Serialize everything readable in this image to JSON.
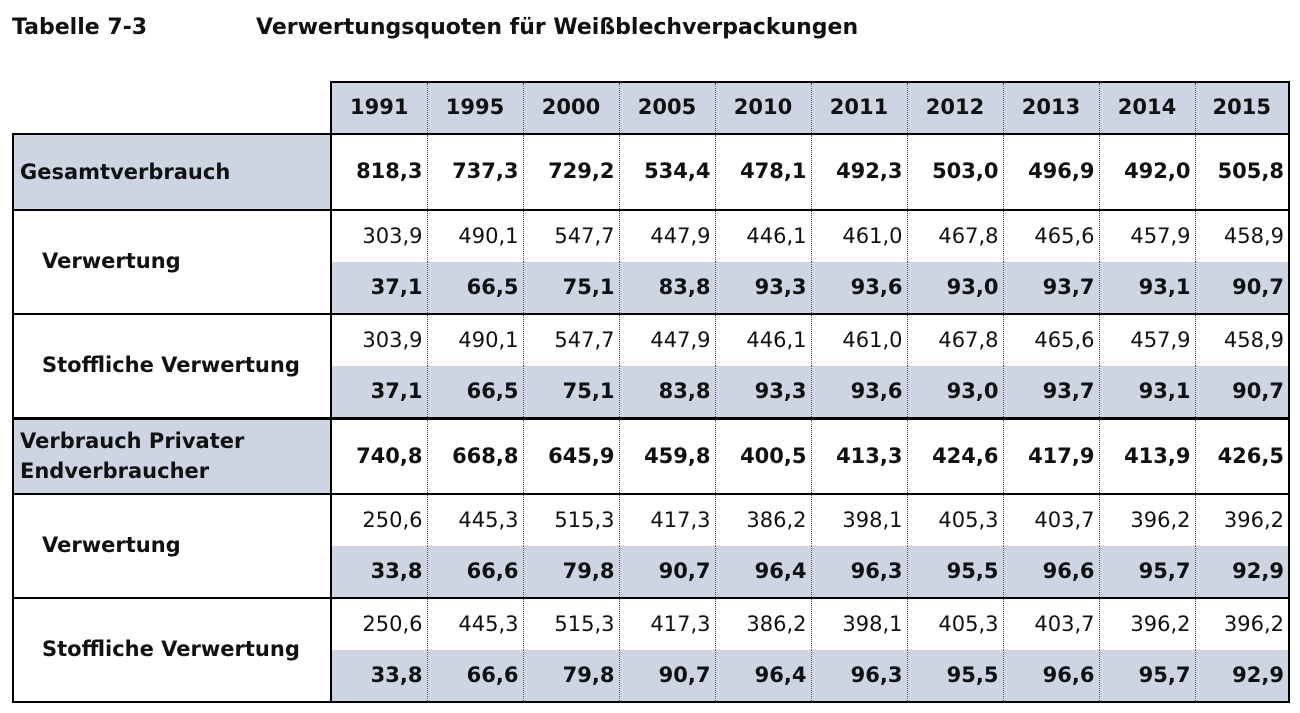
{
  "title": {
    "code": "Tabelle 7-3",
    "text": "Verwertungsquoten für Weißblechverpackungen"
  },
  "years": [
    "1991",
    "1995",
    "2000",
    "2005",
    "2010",
    "2011",
    "2012",
    "2013",
    "2014",
    "2015"
  ],
  "sections": [
    {
      "label": "Gesamtverbrauch",
      "totals": [
        "818,3",
        "737,3",
        "729,2",
        "534,4",
        "478,1",
        "492,3",
        "503,0",
        "496,9",
        "492,0",
        "505,8"
      ],
      "subs": [
        {
          "label": "Verwertung",
          "amounts": [
            "303,9",
            "490,1",
            "547,7",
            "447,9",
            "446,1",
            "461,0",
            "467,8",
            "465,6",
            "457,9",
            "458,9"
          ],
          "rates": [
            "37,1",
            "66,5",
            "75,1",
            "83,8",
            "93,3",
            "93,6",
            "93,0",
            "93,7",
            "93,1",
            "90,7"
          ]
        },
        {
          "label": "Stoffliche Verwertung",
          "amounts": [
            "303,9",
            "490,1",
            "547,7",
            "447,9",
            "446,1",
            "461,0",
            "467,8",
            "465,6",
            "457,9",
            "458,9"
          ],
          "rates": [
            "37,1",
            "66,5",
            "75,1",
            "83,8",
            "93,3",
            "93,6",
            "93,0",
            "93,7",
            "93,1",
            "90,7"
          ]
        }
      ]
    },
    {
      "label": "Verbrauch Privater Endverbraucher",
      "totals": [
        "740,8",
        "668,8",
        "645,9",
        "459,8",
        "400,5",
        "413,3",
        "424,6",
        "417,9",
        "413,9",
        "426,5"
      ],
      "subs": [
        {
          "label": "Verwertung",
          "amounts": [
            "250,6",
            "445,3",
            "515,3",
            "417,3",
            "386,2",
            "398,1",
            "405,3",
            "403,7",
            "396,2",
            "396,2"
          ],
          "rates": [
            "33,8",
            "66,6",
            "79,8",
            "90,7",
            "96,4",
            "96,3",
            "95,5",
            "96,6",
            "95,7",
            "92,9"
          ]
        },
        {
          "label": "Stoffliche Verwertung",
          "amounts": [
            "250,6",
            "445,3",
            "515,3",
            "417,3",
            "386,2",
            "398,1",
            "405,3",
            "403,7",
            "396,2",
            "396,2"
          ],
          "rates": [
            "33,8",
            "66,6",
            "79,8",
            "90,7",
            "96,4",
            "96,3",
            "95,5",
            "96,6",
            "95,7",
            "92,9"
          ]
        }
      ]
    }
  ],
  "colors": {
    "header_fill": "#cdd5e4",
    "rate_fill": "#cdd5e4",
    "border": "#000000"
  }
}
